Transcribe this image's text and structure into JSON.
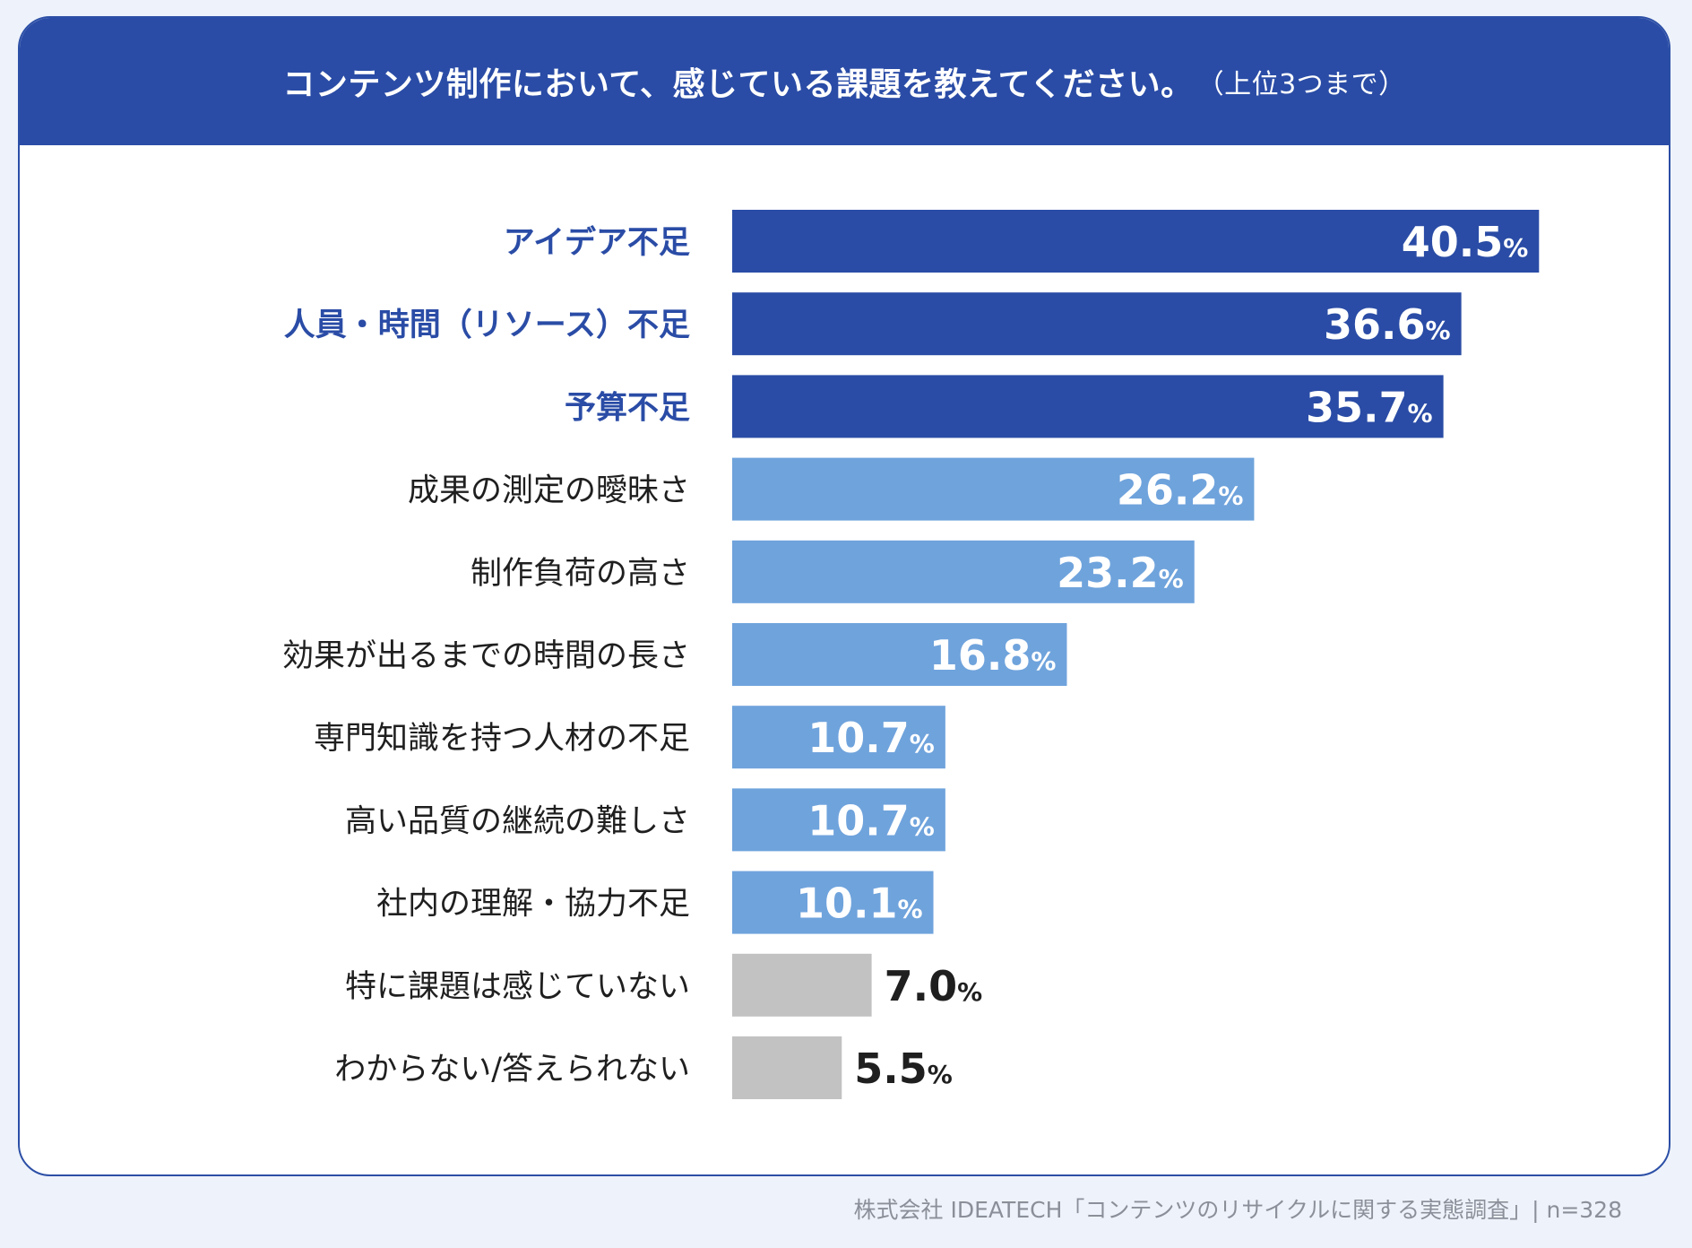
{
  "header": {
    "title": "コンテンツ制作において、感じている課題を教えてください。",
    "subtitle": "（上位3つまで）"
  },
  "colors": {
    "header_bg": "#2a4ca6",
    "top": "#2a4ca6",
    "mid": "#6fa3dc",
    "none": "#c2c2c2",
    "label_top": "#2a4ca6",
    "label_normal": "#1f1f1f"
  },
  "chart_data": {
    "type": "bar",
    "orientation": "horizontal",
    "unit": "%",
    "categories": [
      "アイデア不足",
      "人員・時間（リソース）不足",
      "予算不足",
      "成果の測定の曖昧さ",
      "制作負荷の高さ",
      "効果が出るまでの時間の長さ",
      "専門知識を持つ人材の不足",
      "高い品質の継続の難しさ",
      "社内の理解・協力不足",
      "特に課題は感じていない",
      "わからない/答えられない"
    ],
    "values": [
      40.5,
      36.6,
      35.7,
      26.2,
      23.2,
      16.8,
      10.7,
      10.7,
      10.1,
      7.0,
      5.5
    ],
    "groups": [
      "top",
      "top",
      "top",
      "mid",
      "mid",
      "mid",
      "mid",
      "mid",
      "mid",
      "none",
      "none"
    ],
    "xlim": [
      0,
      50
    ]
  },
  "footer": {
    "source": "株式会社 IDEATECH「コンテンツのリサイクルに関する実態調査」| n=328"
  }
}
